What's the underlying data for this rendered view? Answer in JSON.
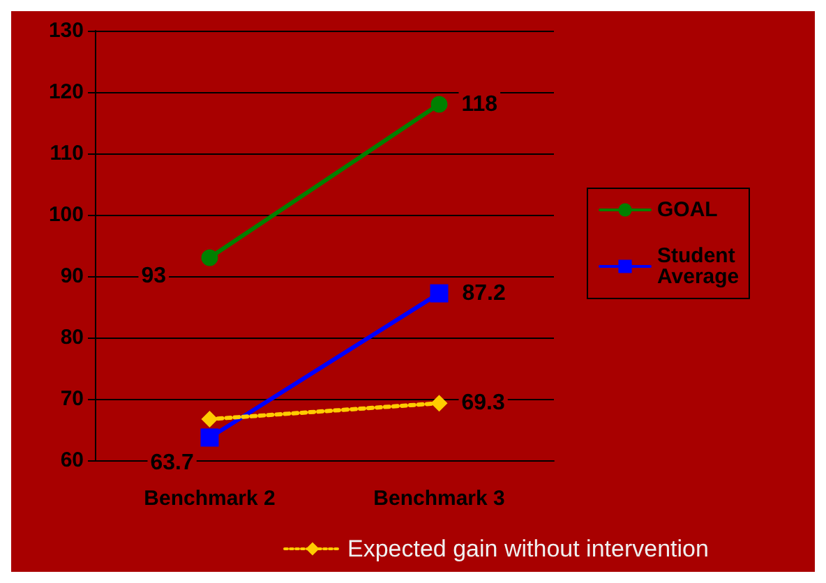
{
  "chart_data": {
    "type": "line",
    "categories": [
      "Benchmark 2",
      "Benchmark 3"
    ],
    "series": [
      {
        "name": "GOAL",
        "color": "#008000",
        "values": [
          93,
          118
        ],
        "value_labels": [
          "93",
          "118"
        ],
        "marker": "circle",
        "line_style": "solid"
      },
      {
        "name": "Student Average",
        "color": "#0000ff",
        "values": [
          63.7,
          87.2
        ],
        "value_labels": [
          "63.7",
          "87.2"
        ],
        "marker": "square",
        "line_style": "solid"
      },
      {
        "name": "Expected gain without intervention",
        "color": "#ffcc00",
        "values": [
          66.7,
          69.3
        ],
        "value_labels": [
          null,
          "69.3"
        ],
        "marker": "diamond",
        "line_style": "dotted"
      }
    ],
    "ylim": [
      60,
      130
    ],
    "yticks": [
      60,
      70,
      80,
      90,
      100,
      110,
      120,
      130
    ],
    "grid": "y",
    "legend": "right"
  }
}
